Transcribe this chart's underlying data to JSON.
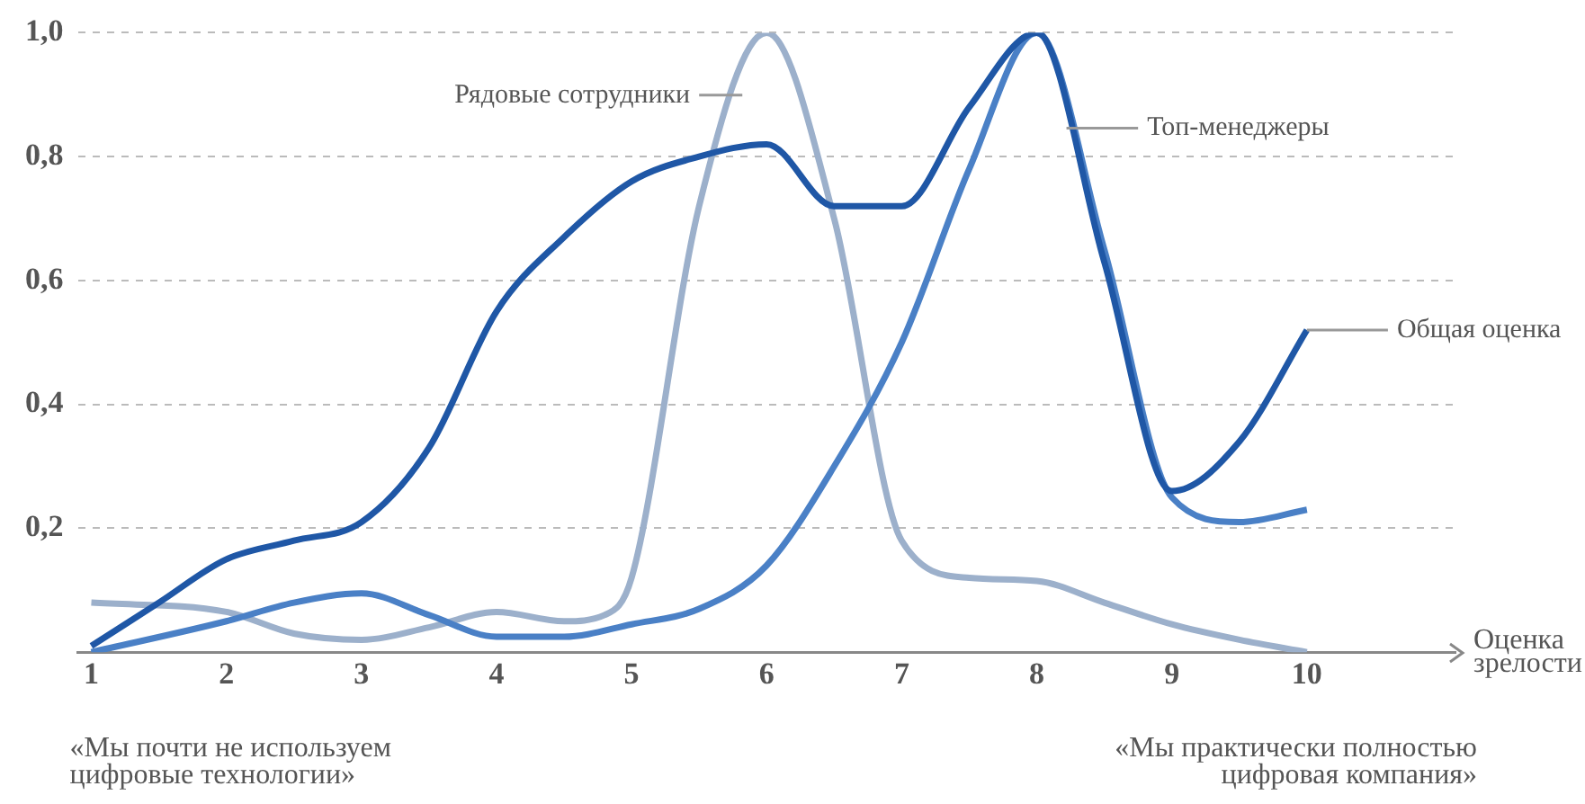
{
  "chart_data": {
    "type": "line",
    "xlabel": "Оценка зрелости",
    "annotations": [
      "«Мы почти не используем цифровые технологии»",
      "«Мы практически полностью цифровая компания»"
    ],
    "xlim": [
      0.9,
      11.1
    ],
    "xticks": [
      1,
      2,
      3,
      4,
      5,
      6,
      7,
      8,
      9,
      10
    ],
    "ylim": [
      0,
      1
    ],
    "yticks": [
      {
        "value": 0,
        "label": null
      },
      {
        "value": 0.2,
        "label": "0,2"
      },
      {
        "value": 0.4,
        "label": "0,4"
      },
      {
        "value": 0.6,
        "label": "0,6"
      },
      {
        "value": 0.8,
        "label": "0,8"
      },
      {
        "value": 1,
        "label": "1,0"
      }
    ],
    "grid": "y",
    "legend": false,
    "marker": "none",
    "line_style": "solid",
    "series": [
      {
        "name": "Общая оценка",
        "color": "#1f57a6",
        "x": [
          1,
          1.5,
          2,
          2.5,
          3,
          3.5,
          4,
          4.5,
          5,
          5.5,
          6,
          6.5,
          7,
          7.5,
          8,
          8.5,
          9,
          9.5,
          10
        ],
        "values": [
          0.01,
          0.08,
          0.15,
          0.18,
          0.21,
          0.33,
          0.55,
          0.67,
          0.76,
          0.8,
          0.82,
          0.72,
          0.72,
          0.88,
          1.0,
          0.63,
          0.26,
          0.34,
          0.52
        ]
      },
      {
        "name": "Топ-менеджеры",
        "color": "#4a80c6",
        "x": [
          1,
          2,
          2.5,
          3,
          3.5,
          4,
          4.5,
          5,
          5.5,
          6,
          6.5,
          7,
          7.5,
          8,
          8.5,
          9,
          9.5,
          10
        ],
        "values": [
          0,
          0.05,
          0.08,
          0.095,
          0.06,
          0.025,
          0.025,
          0.045,
          0.07,
          0.14,
          0.3,
          0.5,
          0.78,
          1.0,
          0.65,
          0.25,
          0.21,
          0.23
        ]
      },
      {
        "name": "Рядовые сотрудники",
        "color": "#9cb0cb",
        "x": [
          1,
          2,
          2.5,
          3,
          3.5,
          4,
          4.5,
          4.8,
          5,
          5.5,
          6,
          6.5,
          7,
          7.5,
          8,
          8.5,
          9,
          9.5,
          10
        ],
        "values": [
          0.08,
          0.065,
          0.03,
          0.02,
          0.04,
          0.065,
          0.05,
          0.06,
          0.12,
          0.72,
          1.0,
          0.7,
          0.18,
          0.12,
          0.115,
          0.08,
          0.045,
          0.02,
          0
        ]
      }
    ]
  }
}
